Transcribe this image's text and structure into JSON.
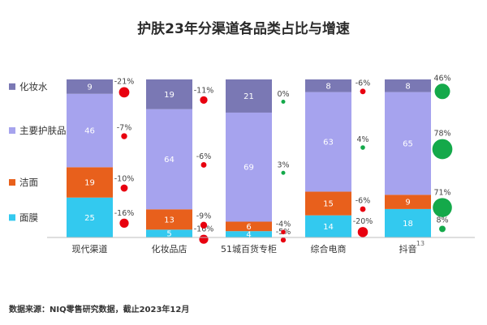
{
  "chart_data": {
    "type": "bar",
    "stacked": true,
    "title": "护肤23年分渠道各品类占比与增速",
    "categories": [
      "现代渠道",
      "化妆品店",
      "51城百货专柜",
      "综合电商",
      "抖音"
    ],
    "series": [
      {
        "name": "面膜",
        "color": "#33c9ef",
        "values": [
          25,
          5,
          4,
          14,
          18
        ],
        "growth": [
          "-16%",
          "-16%",
          "-5%",
          "-20%",
          "8%"
        ]
      },
      {
        "name": "洁面",
        "color": "#e8601c",
        "values": [
          19,
          13,
          6,
          15,
          9
        ],
        "growth": [
          "-10%",
          "-9%",
          "-4%",
          "-6%",
          "71%"
        ]
      },
      {
        "name": "主要护肤品",
        "color": "#a6a3ee",
        "values": [
          46,
          64,
          69,
          63,
          65
        ],
        "growth": [
          "-7%",
          "-6%",
          "3%",
          "4%",
          "78%"
        ]
      },
      {
        "name": "化妆水",
        "color": "#7a78b4",
        "values": [
          9,
          19,
          21,
          8,
          8
        ],
        "growth": [
          "-21%",
          "-11%",
          "0%",
          "-6%",
          "46%"
        ]
      }
    ],
    "growth_colors": {
      "negative": "#e8000f",
      "positive": "#14a94a"
    },
    "legend_position": "left",
    "grid": false
  },
  "source_note": "数据来源：NIQ零售研究数据，截止2023年12月",
  "page_number": "13"
}
